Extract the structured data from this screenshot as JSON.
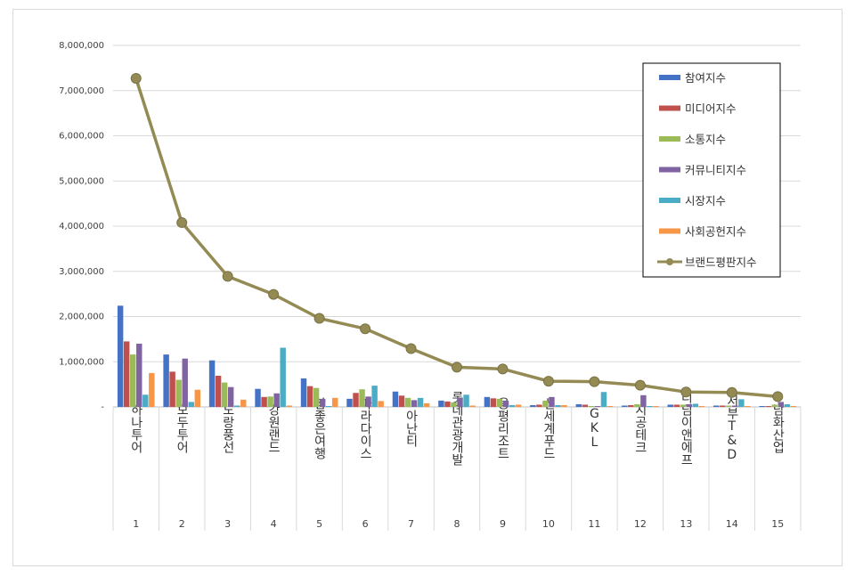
{
  "chart_data": {
    "type": "bar",
    "title": "",
    "xlabel": "",
    "ylabel": "",
    "ylim": [
      0,
      8000000
    ],
    "yticks": [
      "-",
      "1,000,000",
      "2,000,000",
      "3,000,000",
      "4,000,000",
      "5,000,000",
      "6,000,000",
      "7,000,000",
      "8,000,000"
    ],
    "grid": true,
    "legend_position": "top-right",
    "categories": [
      "하나투어",
      "모두투어",
      "노랑풍선",
      "강원랜드",
      "참좋은여행",
      "파라다이스",
      "아난티",
      "롯데관광개발",
      "용평리조트",
      "신세계푸드",
      "GKL",
      "시공테크",
      "디딤이앤에프",
      "서부T&D",
      "남화산업"
    ],
    "ranks": [
      "1",
      "2",
      "3",
      "4",
      "5",
      "6",
      "7",
      "8",
      "9",
      "10",
      "11",
      "12",
      "13",
      "14",
      "15"
    ],
    "series": [
      {
        "name": "참여지수",
        "color": "#4472c4",
        "values": [
          2240000,
          1160000,
          1030000,
          400000,
          630000,
          180000,
          340000,
          140000,
          220000,
          40000,
          60000,
          30000,
          50000,
          30000,
          20000
        ]
      },
      {
        "name": "미디어지수",
        "color": "#c0504d",
        "values": [
          1450000,
          780000,
          690000,
          220000,
          460000,
          310000,
          250000,
          120000,
          190000,
          50000,
          50000,
          40000,
          50000,
          30000,
          20000
        ]
      },
      {
        "name": "소통지수",
        "color": "#9bbb59",
        "values": [
          1160000,
          600000,
          540000,
          230000,
          420000,
          390000,
          200000,
          100000,
          180000,
          140000,
          20000,
          60000,
          50000,
          30000,
          50000
        ]
      },
      {
        "name": "커뮤니티지수",
        "color": "#8064a2",
        "values": [
          1400000,
          1070000,
          440000,
          300000,
          180000,
          230000,
          150000,
          200000,
          140000,
          220000,
          20000,
          260000,
          60000,
          30000,
          110000
        ]
      },
      {
        "name": "시장지수",
        "color": "#4bacc6",
        "values": [
          270000,
          110000,
          30000,
          1310000,
          20000,
          470000,
          200000,
          270000,
          40000,
          40000,
          330000,
          20000,
          70000,
          170000,
          60000
        ]
      },
      {
        "name": "사회공헌지수",
        "color": "#f79646",
        "values": [
          750000,
          380000,
          160000,
          30000,
          200000,
          130000,
          80000,
          30000,
          50000,
          40000,
          20000,
          20000,
          20000,
          20000,
          20000
        ]
      }
    ],
    "line_series": {
      "name": "브랜드평판지수",
      "color": "#948a54",
      "values": [
        7270000,
        4080000,
        2890000,
        2490000,
        1960000,
        1730000,
        1290000,
        880000,
        840000,
        570000,
        560000,
        480000,
        330000,
        320000,
        230000
      ]
    }
  }
}
